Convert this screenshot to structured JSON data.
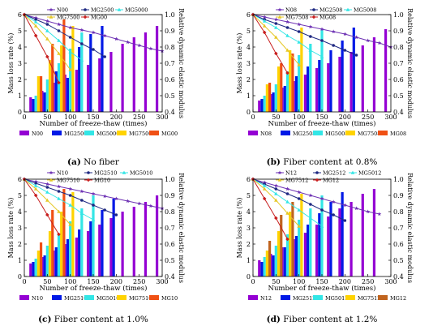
{
  "figure": {
    "panels": [
      {
        "id": "a",
        "caption_letter": "(a)",
        "caption_text": "No fiber"
      },
      {
        "id": "b",
        "caption_letter": "(b)",
        "caption_text": "Fiber content at 0.8%"
      },
      {
        "id": "c",
        "caption_letter": "(c)",
        "caption_text": "Fiber content at 1.0%"
      },
      {
        "id": "d",
        "caption_letter": "(d)",
        "caption_text": "Fiber content at 1.2%"
      }
    ],
    "colors": {
      "purple": "#9400D3",
      "blue": "#0019E6",
      "cyan": "#33E6E6",
      "yellow": "#FFD300",
      "orange": "#F05014",
      "bar_orange_d": "#C0641E",
      "line_red": "#C81E1E",
      "line_navy": "#1E2882",
      "line_violet": "#6E32B4",
      "line_yellow": "#E6C828"
    }
  },
  "chart_data": [
    {
      "type": "bar",
      "panel": "a",
      "xlabel": "Number of freeze-thaw (times)",
      "ylabel": "Mass loss rate (%)",
      "y2label": "Relative dynamic elastic modulus",
      "xlim": [
        0,
        300
      ],
      "xticks": [
        0,
        50,
        100,
        150,
        200,
        250,
        300
      ],
      "ylim": [
        0,
        6
      ],
      "yticks": [
        0,
        1,
        2,
        3,
        4,
        5,
        6
      ],
      "y2lim": [
        0.4,
        1.0
      ],
      "y2ticks": [
        "0.4",
        "0.5",
        "0.6",
        "0.7",
        "0.8",
        "0.9",
        "1.0"
      ],
      "line_legend": [
        "N00",
        "MG2500",
        "MG5000",
        "MG7500",
        "MG00"
      ],
      "bar_legend": [
        "N00",
        "MG2500",
        "MG5000",
        "MG7500",
        "MG00"
      ],
      "bar_series": [
        {
          "name": "N00",
          "x": [
            25,
            50,
            75,
            100,
            125,
            150,
            175,
            200,
            225,
            250,
            275,
            300
          ],
          "values": [
            0.9,
            1.3,
            1.8,
            2.3,
            2.6,
            2.9,
            3.3,
            3.7,
            4.2,
            4.6,
            4.9,
            5.3
          ]
        },
        {
          "name": "MG2500",
          "x": [
            25,
            50,
            75,
            100,
            125,
            150,
            175
          ],
          "values": [
            0.8,
            1.2,
            2.5,
            2.1,
            4.0,
            4.8,
            5.3
          ]
        },
        {
          "name": "MG5000",
          "x": [
            25,
            50,
            75,
            100,
            125
          ],
          "values": [
            1.0,
            2.0,
            3.0,
            3.9,
            4.9
          ]
        },
        {
          "name": "MG7500",
          "x": [
            25,
            50,
            75,
            100
          ],
          "values": [
            2.2,
            3.2,
            4.1,
            5.3
          ]
        },
        {
          "name": "MG00",
          "x": [
            25,
            50,
            75
          ],
          "values": [
            2.2,
            4.2,
            5.7
          ]
        }
      ],
      "line_series": [
        {
          "name": "N00",
          "x": [
            0,
            25,
            50,
            75,
            100,
            125,
            150,
            175,
            200,
            225,
            250,
            275,
            300
          ],
          "values": [
            1.0,
            0.98,
            0.96,
            0.94,
            0.92,
            0.905,
            0.89,
            0.87,
            0.85,
            0.83,
            0.81,
            0.79,
            0.775
          ]
        },
        {
          "name": "MG2500",
          "x": [
            0,
            25,
            50,
            75,
            100,
            125,
            150,
            175
          ],
          "values": [
            1.0,
            0.97,
            0.94,
            0.9,
            0.86,
            0.82,
            0.785,
            0.74
          ]
        },
        {
          "name": "MG5000",
          "x": [
            0,
            25,
            50,
            75,
            100,
            125
          ],
          "values": [
            1.0,
            0.955,
            0.9,
            0.84,
            0.77,
            0.72
          ]
        },
        {
          "name": "MG7500",
          "x": [
            0,
            25,
            50,
            75,
            100
          ],
          "values": [
            1.0,
            0.93,
            0.85,
            0.76,
            0.66
          ]
        },
        {
          "name": "MG00",
          "x": [
            0,
            25,
            50,
            75
          ],
          "values": [
            1.0,
            0.87,
            0.74,
            0.58
          ]
        }
      ]
    },
    {
      "type": "bar",
      "panel": "b",
      "xlabel": "Number of freeze-thaw (times)",
      "ylabel": "Mass loss rate (%)",
      "y2label": "Relative dynamic elastic modulus",
      "xlim": [
        0,
        300
      ],
      "xticks": [
        0,
        50,
        100,
        150,
        200,
        250,
        300
      ],
      "ylim": [
        0,
        6
      ],
      "yticks": [
        0,
        1,
        2,
        3,
        4,
        5,
        6
      ],
      "y2lim": [
        0.4,
        1.0
      ],
      "y2ticks": [
        "0.4",
        "0.5",
        "0.6",
        "0.7",
        "0.8",
        "0.9",
        "1.0"
      ],
      "line_legend": [
        "N08",
        "MG2508",
        "MG5008",
        "MG7508",
        "MG08"
      ],
      "bar_legend": [
        "N08",
        "MG2508",
        "MG5008",
        "MG7508",
        "MG08"
      ],
      "bar_series": [
        {
          "name": "N08",
          "x": [
            25,
            50,
            75,
            100,
            125,
            150,
            175,
            200,
            225,
            250,
            275,
            300
          ],
          "values": [
            0.7,
            1.1,
            1.5,
            1.9,
            2.3,
            2.7,
            3.0,
            3.4,
            3.7,
            4.1,
            4.6,
            5.1
          ]
        },
        {
          "name": "MG2508",
          "x": [
            25,
            50,
            75,
            100,
            125,
            150,
            175,
            200,
            225
          ],
          "values": [
            0.8,
            1.2,
            1.6,
            2.2,
            2.8,
            3.2,
            3.8,
            4.4,
            5.2
          ]
        },
        {
          "name": "MG5008",
          "x": [
            25,
            50,
            75,
            100,
            125,
            150
          ],
          "values": [
            1.0,
            1.7,
            2.5,
            3.5,
            4.2,
            5.1
          ]
        },
        {
          "name": "MG7508",
          "x": [
            25,
            50,
            75,
            100
          ],
          "values": [
            1.7,
            2.8,
            3.8,
            5.2
          ]
        },
        {
          "name": "MG08",
          "x": [
            25,
            50,
            75
          ],
          "values": [
            1.8,
            3.0,
            3.6
          ]
        }
      ],
      "line_series": [
        {
          "name": "N08",
          "x": [
            0,
            25,
            50,
            75,
            100,
            125,
            150,
            175,
            200,
            225,
            250,
            275,
            300
          ],
          "values": [
            1.0,
            0.985,
            0.97,
            0.955,
            0.94,
            0.925,
            0.91,
            0.895,
            0.88,
            0.86,
            0.84,
            0.825,
            0.8
          ]
        },
        {
          "name": "MG2508",
          "x": [
            0,
            25,
            50,
            75,
            100,
            125,
            150,
            175,
            200,
            225
          ],
          "values": [
            1.0,
            0.97,
            0.945,
            0.92,
            0.895,
            0.865,
            0.84,
            0.81,
            0.78,
            0.75
          ]
        },
        {
          "name": "MG5008",
          "x": [
            0,
            25,
            50,
            75,
            100,
            125,
            150
          ],
          "values": [
            1.0,
            0.96,
            0.92,
            0.87,
            0.83,
            0.78,
            0.74
          ]
        },
        {
          "name": "MG7508",
          "x": [
            0,
            25,
            50,
            75,
            100
          ],
          "values": [
            1.0,
            0.93,
            0.86,
            0.78,
            0.69
          ]
        },
        {
          "name": "MG08",
          "x": [
            0,
            25,
            50,
            75
          ],
          "values": [
            1.0,
            0.89,
            0.76,
            0.64
          ]
        }
      ]
    },
    {
      "type": "bar",
      "panel": "c",
      "xlabel": "Number of freeze-thaw (times)",
      "ylabel": "Mass loss rate (%)",
      "y2label": "Relative dynamic elastic modulus",
      "xlim": [
        0,
        300
      ],
      "xticks": [
        0,
        50,
        100,
        150,
        200,
        250,
        300
      ],
      "ylim": [
        0,
        6
      ],
      "yticks": [
        0,
        1,
        2,
        3,
        4,
        5,
        6
      ],
      "y2lim": [
        0.4,
        1.0
      ],
      "y2ticks": [
        "0.4",
        "0.5",
        "0.6",
        "0.7",
        "0.8",
        "0.9",
        "1.0"
      ],
      "line_legend": [
        "N10",
        "MG2510",
        "MG5010",
        "MG7510",
        "MG10"
      ],
      "bar_legend": [
        "N10",
        "MG2510",
        "MG5010",
        "MG7510",
        "MG10"
      ],
      "bar_series": [
        {
          "name": "N10",
          "x": [
            25,
            50,
            75,
            100,
            125,
            150,
            175,
            200,
            225,
            250,
            275,
            300
          ],
          "values": [
            0.8,
            1.2,
            1.6,
            2.0,
            2.4,
            2.8,
            3.2,
            3.6,
            4.0,
            4.3,
            4.6,
            5.0
          ]
        },
        {
          "name": "MG2510",
          "x": [
            25,
            50,
            75,
            100,
            125,
            150,
            175,
            200
          ],
          "values": [
            0.9,
            1.3,
            1.8,
            2.3,
            2.9,
            3.4,
            4.1,
            4.8
          ]
        },
        {
          "name": "MG5010",
          "x": [
            25,
            50,
            75,
            100,
            125,
            150
          ],
          "values": [
            1.1,
            1.9,
            2.6,
            3.4,
            4.2,
            5.0
          ]
        },
        {
          "name": "MG7510",
          "x": [
            25,
            50,
            75,
            100
          ],
          "values": [
            1.6,
            2.8,
            4.0,
            5.2
          ]
        },
        {
          "name": "MG10",
          "x": [
            25,
            50,
            75
          ],
          "values": [
            2.1,
            4.1,
            5.4
          ]
        }
      ],
      "line_series": [
        {
          "name": "N10",
          "x": [
            0,
            25,
            50,
            75,
            100,
            125,
            150,
            175,
            200,
            225,
            250,
            275,
            300
          ],
          "values": [
            1.0,
            0.985,
            0.97,
            0.955,
            0.94,
            0.925,
            0.91,
            0.895,
            0.88,
            0.865,
            0.85,
            0.835,
            0.82
          ]
        },
        {
          "name": "MG2510",
          "x": [
            0,
            25,
            50,
            75,
            100,
            125,
            150,
            175,
            200
          ],
          "values": [
            1.0,
            0.975,
            0.95,
            0.925,
            0.9,
            0.87,
            0.84,
            0.81,
            0.78
          ]
        },
        {
          "name": "MG5010",
          "x": [
            0,
            25,
            50,
            75,
            100,
            125,
            150
          ],
          "values": [
            1.0,
            0.96,
            0.92,
            0.88,
            0.84,
            0.79,
            0.75
          ]
        },
        {
          "name": "MG7510",
          "x": [
            0,
            25,
            50,
            75,
            100
          ],
          "values": [
            1.0,
            0.94,
            0.87,
            0.8,
            0.72
          ]
        },
        {
          "name": "MG10",
          "x": [
            0,
            25,
            50,
            75
          ],
          "values": [
            1.0,
            0.9,
            0.78,
            0.66
          ]
        }
      ]
    },
    {
      "type": "bar",
      "panel": "d",
      "xlabel": "Number of freeze-thaw (times)",
      "ylabel": "Mass loss rate (%)",
      "y2label": "Relative dynamic elastic modulus",
      "xlim": [
        0,
        300
      ],
      "xticks": [
        0,
        50,
        100,
        150,
        200,
        250,
        300
      ],
      "ylim": [
        0,
        6
      ],
      "yticks": [
        0,
        1,
        2,
        3,
        4,
        5,
        6
      ],
      "y2lim": [
        0.4,
        1.0
      ],
      "y2ticks": [
        "0.4",
        "0.5",
        "0.6",
        "0.7",
        "0.8",
        "0.9",
        "1.0"
      ],
      "line_legend": [
        "N12",
        "MG2512",
        "MG5012",
        "MG7512",
        "MG12"
      ],
      "bar_legend": [
        "N12",
        "MG2512",
        "MG5012",
        "MG7512",
        "MG12"
      ],
      "bar_series": [
        {
          "name": "N12",
          "x": [
            25,
            50,
            75,
            100,
            125,
            150,
            175,
            200,
            225,
            250,
            275
          ],
          "values": [
            1.0,
            1.4,
            1.8,
            2.3,
            2.7,
            3.2,
            3.7,
            4.2,
            4.6,
            5.1,
            5.4
          ]
        },
        {
          "name": "MG2512",
          "x": [
            25,
            50,
            75,
            100,
            125,
            150,
            175,
            200
          ],
          "values": [
            0.9,
            1.3,
            1.8,
            2.5,
            3.2,
            3.9,
            4.6,
            5.2
          ]
        },
        {
          "name": "MG5012",
          "x": [
            25,
            50,
            75,
            100,
            125,
            150
          ],
          "values": [
            1.2,
            1.9,
            2.6,
            3.5,
            4.2,
            5.0
          ]
        },
        {
          "name": "MG7512",
          "x": [
            25,
            50,
            75,
            100
          ],
          "values": [
            1.6,
            2.8,
            4.0,
            5.1
          ]
        },
        {
          "name": "MG12",
          "x": [
            25,
            50,
            75
          ],
          "values": [
            2.2,
            3.8,
            4.6
          ]
        }
      ],
      "line_series": [
        {
          "name": "N12",
          "x": [
            0,
            25,
            50,
            75,
            100,
            125,
            150,
            175,
            200,
            225,
            250,
            275
          ],
          "values": [
            1.0,
            0.98,
            0.96,
            0.94,
            0.92,
            0.9,
            0.88,
            0.86,
            0.84,
            0.82,
            0.8,
            0.785
          ]
        },
        {
          "name": "MG2512",
          "x": [
            0,
            25,
            50,
            75,
            100,
            125,
            150,
            175,
            200
          ],
          "values": [
            1.0,
            0.97,
            0.94,
            0.91,
            0.88,
            0.845,
            0.81,
            0.78,
            0.745
          ]
        },
        {
          "name": "MG5012",
          "x": [
            0,
            25,
            50,
            75,
            100,
            125,
            150
          ],
          "values": [
            1.0,
            0.96,
            0.91,
            0.86,
            0.81,
            0.76,
            0.71
          ]
        },
        {
          "name": "MG7512",
          "x": [
            0,
            25,
            50,
            75,
            100
          ],
          "values": [
            1.0,
            0.94,
            0.87,
            0.79,
            0.71
          ]
        },
        {
          "name": "MG12",
          "x": [
            0,
            25,
            50,
            75
          ],
          "values": [
            1.0,
            0.88,
            0.76,
            0.63
          ]
        }
      ]
    }
  ]
}
